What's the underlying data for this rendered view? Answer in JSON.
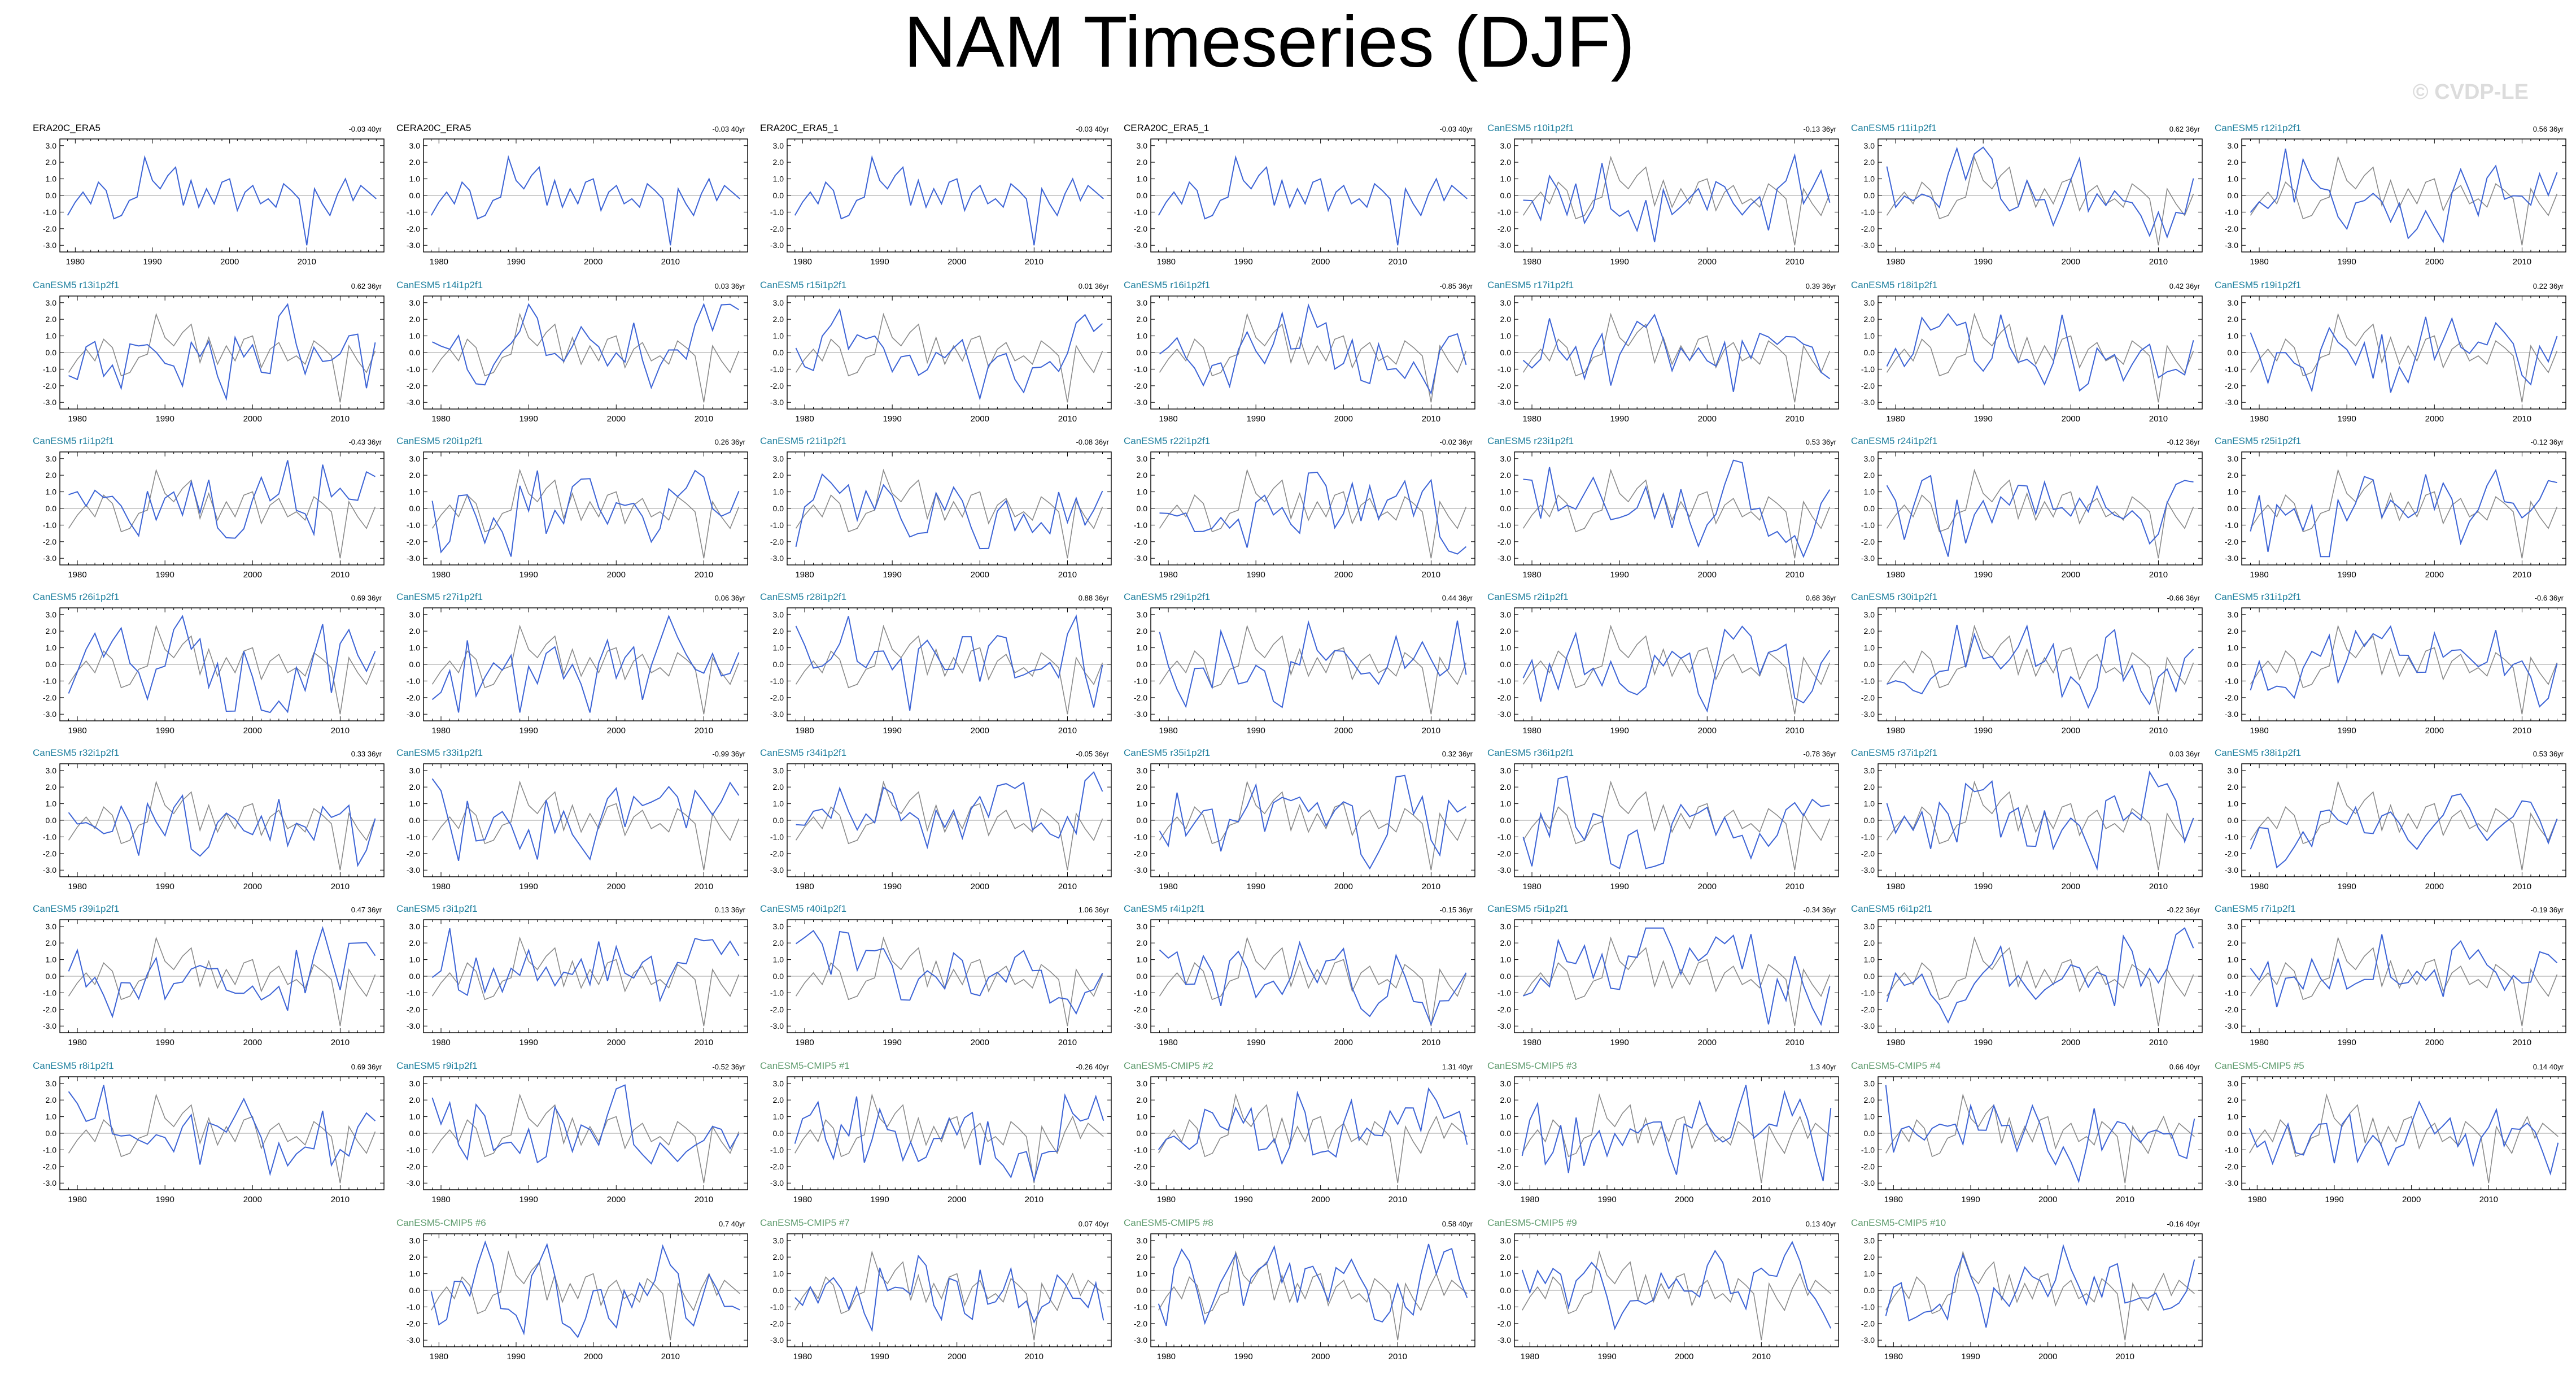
{
  "title": "NAM Timeseries (DJF)",
  "watermark": "© CVDP-LE",
  "colors": {
    "member": "#3d64d6",
    "observation": "#8a8a8a",
    "zero_line": "#9c9c9c"
  },
  "chart_data": {
    "type": "line",
    "start_year": 1979,
    "y_ticks": [
      "3.0",
      "2.0",
      "1.0",
      "0.0",
      "-1.0",
      "-2.0",
      "-3.0"
    ],
    "x_ticks": [
      "1980",
      "1990",
      "2000",
      "2010"
    ],
    "observation": {
      "name": "ERA20C_ERA5",
      "years": [
        1979,
        2019
      ],
      "values": [
        -1.2,
        -0.4,
        0.2,
        -0.5,
        0.8,
        0.3,
        -1.4,
        -1.2,
        -0.3,
        -0.1,
        2.3,
        0.9,
        0.4,
        1.2,
        1.7,
        -0.6,
        0.9,
        -0.7,
        0.4,
        -0.5,
        0.8,
        1.0,
        -0.9,
        0.2,
        0.6,
        -0.5,
        -0.2,
        -0.7,
        0.7,
        0.3,
        -0.2,
        -3.0,
        0.4,
        -0.5,
        -1.2,
        0.1,
        1.0,
        -0.3,
        0.6,
        0.2,
        -0.2
      ]
    },
    "ylim": [
      -3.4,
      3.4
    ],
    "panels": [
      {
        "label": "ERA20C_ERA5",
        "trend": "-0.03 40yr",
        "kind": "obs",
        "years": [
          1979,
          2019
        ],
        "ylim": [
          -3.4,
          3.4
        ],
        "x_ticks": [
          "1980",
          "1990",
          "2000",
          "2010"
        ]
      },
      {
        "label": "CERA20C_ERA5",
        "trend": "-0.03 40yr",
        "kind": "obs",
        "years": [
          1979,
          2019
        ],
        "ylim": [
          -3.4,
          3.4
        ],
        "x_ticks": [
          "1980",
          "1990",
          "2000",
          "2010"
        ]
      },
      {
        "label": "ERA20C_ERA5_1",
        "trend": "-0.03 40yr",
        "kind": "obs",
        "years": [
          1979,
          2019
        ],
        "ylim": [
          -3.4,
          3.4
        ],
        "x_ticks": [
          "1980",
          "1990",
          "2000",
          "2010"
        ]
      },
      {
        "label": "CERA20C_ERA5_1",
        "trend": "-0.03 40yr",
        "kind": "obs",
        "years": [
          1979,
          2019
        ],
        "ylim": [
          -3.4,
          3.4
        ],
        "x_ticks": [
          "1980",
          "1990",
          "2000",
          "2010"
        ]
      },
      {
        "label": "CanESM5 r10i1p2f1",
        "trend": "-0.13 36yr",
        "kind": "lens",
        "years": [
          1979,
          2014
        ],
        "ylim": [
          -3.4,
          3.4
        ],
        "x_ticks": [
          "1980",
          "1990",
          "2000",
          "2010"
        ]
      },
      {
        "label": "CanESM5 r11i1p2f1",
        "trend": "0.62 36yr",
        "kind": "lens",
        "years": [
          1979,
          2014
        ],
        "ylim": [
          -3.4,
          3.4
        ],
        "x_ticks": [
          "1980",
          "1990",
          "2000",
          "2010"
        ]
      },
      {
        "label": "CanESM5 r12i1p2f1",
        "trend": "0.56 36yr",
        "kind": "lens",
        "years": [
          1979,
          2014
        ],
        "ylim": [
          -3.4,
          3.4
        ],
        "x_ticks": [
          "1980",
          "1990",
          "2000",
          "2010"
        ]
      },
      {
        "label": "CanESM5 r13i1p2f1",
        "trend": "0.62 36yr",
        "kind": "lens",
        "years": [
          1979,
          2014
        ],
        "ylim": [
          -3.4,
          3.4
        ],
        "x_ticks": [
          "1980",
          "1990",
          "2000",
          "2010"
        ]
      },
      {
        "label": "CanESM5 r14i1p2f1",
        "trend": "0.03 36yr",
        "kind": "lens",
        "years": [
          1979,
          2014
        ],
        "ylim": [
          -3.4,
          3.4
        ],
        "x_ticks": [
          "1980",
          "1990",
          "2000",
          "2010"
        ]
      },
      {
        "label": "CanESM5 r15i1p2f1",
        "trend": "0.01 36yr",
        "kind": "lens",
        "years": [
          1979,
          2014
        ],
        "ylim": [
          -3.4,
          3.4
        ],
        "x_ticks": [
          "1980",
          "1990",
          "2000",
          "2010"
        ]
      },
      {
        "label": "CanESM5 r16i1p2f1",
        "trend": "-0.85 36yr",
        "kind": "lens",
        "years": [
          1979,
          2014
        ],
        "ylim": [
          -3.4,
          3.4
        ],
        "x_ticks": [
          "1980",
          "1990",
          "2000",
          "2010"
        ]
      },
      {
        "label": "CanESM5 r17i1p2f1",
        "trend": "0.39 36yr",
        "kind": "lens",
        "years": [
          1979,
          2014
        ],
        "ylim": [
          -3.4,
          3.4
        ],
        "x_ticks": [
          "1980",
          "1990",
          "2000",
          "2010"
        ]
      },
      {
        "label": "CanESM5 r18i1p2f1",
        "trend": "0.42 36yr",
        "kind": "lens",
        "years": [
          1979,
          2014
        ],
        "ylim": [
          -3.4,
          3.4
        ],
        "x_ticks": [
          "1980",
          "1990",
          "2000",
          "2010"
        ]
      },
      {
        "label": "CanESM5 r19i1p2f1",
        "trend": "0.22 36yr",
        "kind": "lens",
        "years": [
          1979,
          2014
        ],
        "ylim": [
          -3.4,
          3.4
        ],
        "x_ticks": [
          "1980",
          "1990",
          "2000",
          "2010"
        ]
      },
      {
        "label": "CanESM5 r1i1p2f1",
        "trend": "-0.43 36yr",
        "kind": "lens",
        "years": [
          1979,
          2014
        ],
        "ylim": [
          -3.4,
          3.4
        ],
        "x_ticks": [
          "1980",
          "1990",
          "2000",
          "2010"
        ]
      },
      {
        "label": "CanESM5 r20i1p2f1",
        "trend": "0.26 36yr",
        "kind": "lens",
        "years": [
          1979,
          2014
        ],
        "ylim": [
          -3.4,
          3.4
        ],
        "x_ticks": [
          "1980",
          "1990",
          "2000",
          "2010"
        ]
      },
      {
        "label": "CanESM5 r21i1p2f1",
        "trend": "-0.08 36yr",
        "kind": "lens",
        "years": [
          1979,
          2014
        ],
        "ylim": [
          -3.4,
          3.4
        ],
        "x_ticks": [
          "1980",
          "1990",
          "2000",
          "2010"
        ]
      },
      {
        "label": "CanESM5 r22i1p2f1",
        "trend": "-0.02 36yr",
        "kind": "lens",
        "years": [
          1979,
          2014
        ],
        "ylim": [
          -3.4,
          3.4
        ],
        "x_ticks": [
          "1980",
          "1990",
          "2000",
          "2010"
        ]
      },
      {
        "label": "CanESM5 r23i1p2f1",
        "trend": "0.53 36yr",
        "kind": "lens",
        "years": [
          1979,
          2014
        ],
        "ylim": [
          -3.4,
          3.4
        ],
        "x_ticks": [
          "1980",
          "1990",
          "2000",
          "2010"
        ]
      },
      {
        "label": "CanESM5 r24i1p2f1",
        "trend": "-0.12 36yr",
        "kind": "lens",
        "years": [
          1979,
          2014
        ],
        "ylim": [
          -3.4,
          3.4
        ],
        "x_ticks": [
          "1980",
          "1990",
          "2000",
          "2010"
        ]
      },
      {
        "label": "CanESM5 r25i1p2f1",
        "trend": "-0.12 36yr",
        "kind": "lens",
        "years": [
          1979,
          2014
        ],
        "ylim": [
          -3.4,
          3.4
        ],
        "x_ticks": [
          "1980",
          "1990",
          "2000",
          "2010"
        ]
      },
      {
        "label": "CanESM5 r26i1p2f1",
        "trend": "0.69 36yr",
        "kind": "lens",
        "years": [
          1979,
          2014
        ],
        "ylim": [
          -3.4,
          3.4
        ],
        "x_ticks": [
          "1980",
          "1990",
          "2000",
          "2010"
        ]
      },
      {
        "label": "CanESM5 r27i1p2f1",
        "trend": "0.06 36yr",
        "kind": "lens",
        "years": [
          1979,
          2014
        ],
        "ylim": [
          -3.4,
          3.4
        ],
        "x_ticks": [
          "1980",
          "1990",
          "2000",
          "2010"
        ]
      },
      {
        "label": "CanESM5 r28i1p2f1",
        "trend": "0.88 36yr",
        "kind": "lens",
        "years": [
          1979,
          2014
        ],
        "ylim": [
          -3.4,
          3.4
        ],
        "x_ticks": [
          "1980",
          "1990",
          "2000",
          "2010"
        ]
      },
      {
        "label": "CanESM5 r29i1p2f1",
        "trend": "0.44 36yr",
        "kind": "lens",
        "years": [
          1979,
          2014
        ],
        "ylim": [
          -3.4,
          3.4
        ],
        "x_ticks": [
          "1980",
          "1990",
          "2000",
          "2010"
        ]
      },
      {
        "label": "CanESM5 r2i1p2f1",
        "trend": "0.68 36yr",
        "kind": "lens",
        "years": [
          1979,
          2014
        ],
        "ylim": [
          -3.4,
          3.4
        ],
        "x_ticks": [
          "1980",
          "1990",
          "2000",
          "2010"
        ]
      },
      {
        "label": "CanESM5 r30i1p2f1",
        "trend": "-0.66 36yr",
        "kind": "lens",
        "years": [
          1979,
          2014
        ],
        "ylim": [
          -3.4,
          3.4
        ],
        "x_ticks": [
          "1980",
          "1990",
          "2000",
          "2010"
        ]
      },
      {
        "label": "CanESM5 r31i1p2f1",
        "trend": "-0.6 36yr",
        "kind": "lens",
        "years": [
          1979,
          2014
        ],
        "ylim": [
          -3.4,
          3.4
        ],
        "x_ticks": [
          "1980",
          "1990",
          "2000",
          "2010"
        ]
      },
      {
        "label": "CanESM5 r32i1p2f1",
        "trend": "0.33 36yr",
        "kind": "lens",
        "years": [
          1979,
          2014
        ],
        "ylim": [
          -3.4,
          3.4
        ],
        "x_ticks": [
          "1980",
          "1990",
          "2000",
          "2010"
        ]
      },
      {
        "label": "CanESM5 r33i1p2f1",
        "trend": "-0.99 36yr",
        "kind": "lens",
        "years": [
          1979,
          2014
        ],
        "ylim": [
          -3.4,
          3.4
        ],
        "x_ticks": [
          "1980",
          "1990",
          "2000",
          "2010"
        ]
      },
      {
        "label": "CanESM5 r34i1p2f1",
        "trend": "-0.05 36yr",
        "kind": "lens",
        "years": [
          1979,
          2014
        ],
        "ylim": [
          -3.4,
          3.4
        ],
        "x_ticks": [
          "1980",
          "1990",
          "2000",
          "2010"
        ]
      },
      {
        "label": "CanESM5 r35i1p2f1",
        "trend": "0.32 36yr",
        "kind": "lens",
        "years": [
          1979,
          2014
        ],
        "ylim": [
          -3.4,
          3.4
        ],
        "x_ticks": [
          "1980",
          "1990",
          "2000",
          "2010"
        ]
      },
      {
        "label": "CanESM5 r36i1p2f1",
        "trend": "-0.78 36yr",
        "kind": "lens",
        "years": [
          1979,
          2014
        ],
        "ylim": [
          -3.4,
          3.4
        ],
        "x_ticks": [
          "1980",
          "1990",
          "2000",
          "2010"
        ]
      },
      {
        "label": "CanESM5 r37i1p2f1",
        "trend": "0.03 36yr",
        "kind": "lens",
        "years": [
          1979,
          2014
        ],
        "ylim": [
          -3.4,
          3.4
        ],
        "x_ticks": [
          "1980",
          "1990",
          "2000",
          "2010"
        ]
      },
      {
        "label": "CanESM5 r38i1p2f1",
        "trend": "0.53 36yr",
        "kind": "lens",
        "years": [
          1979,
          2014
        ],
        "ylim": [
          -3.4,
          3.4
        ],
        "x_ticks": [
          "1980",
          "1990",
          "2000",
          "2010"
        ]
      },
      {
        "label": "CanESM5 r39i1p2f1",
        "trend": "0.47 36yr",
        "kind": "lens",
        "years": [
          1979,
          2014
        ],
        "ylim": [
          -3.4,
          3.4
        ],
        "x_ticks": [
          "1980",
          "1990",
          "2000",
          "2010"
        ]
      },
      {
        "label": "CanESM5 r3i1p2f1",
        "trend": "0.13 36yr",
        "kind": "lens",
        "years": [
          1979,
          2014
        ],
        "ylim": [
          -3.4,
          3.4
        ],
        "x_ticks": [
          "1980",
          "1990",
          "2000",
          "2010"
        ]
      },
      {
        "label": "CanESM5 r40i1p2f1",
        "trend": "1.06 36yr",
        "kind": "lens",
        "years": [
          1979,
          2014
        ],
        "ylim": [
          -3.4,
          3.4
        ],
        "x_ticks": [
          "1980",
          "1990",
          "2000",
          "2010"
        ]
      },
      {
        "label": "CanESM5 r4i1p2f1",
        "trend": "-0.15 36yr",
        "kind": "lens",
        "years": [
          1979,
          2014
        ],
        "ylim": [
          -3.4,
          3.4
        ],
        "x_ticks": [
          "1980",
          "1990",
          "2000",
          "2010"
        ]
      },
      {
        "label": "CanESM5 r5i1p2f1",
        "trend": "-0.34 36yr",
        "kind": "lens",
        "years": [
          1979,
          2014
        ],
        "ylim": [
          -3.4,
          3.4
        ],
        "x_ticks": [
          "1980",
          "1990",
          "2000",
          "2010"
        ]
      },
      {
        "label": "CanESM5 r6i1p2f1",
        "trend": "-0.22 36yr",
        "kind": "lens",
        "years": [
          1979,
          2014
        ],
        "ylim": [
          -3.4,
          3.4
        ],
        "x_ticks": [
          "1980",
          "1990",
          "2000",
          "2010"
        ]
      },
      {
        "label": "CanESM5 r7i1p2f1",
        "trend": "-0.19 36yr",
        "kind": "lens",
        "years": [
          1979,
          2014
        ],
        "ylim": [
          -3.4,
          3.4
        ],
        "x_ticks": [
          "1980",
          "1990",
          "2000",
          "2010"
        ]
      },
      {
        "label": "CanESM5 r8i1p2f1",
        "trend": "0.69 36yr",
        "kind": "lens",
        "years": [
          1979,
          2014
        ],
        "ylim": [
          -3.4,
          3.4
        ],
        "x_ticks": [
          "1980",
          "1990",
          "2000",
          "2010"
        ]
      },
      {
        "label": "CanESM5 r9i1p2f1",
        "trend": "-0.52 36yr",
        "kind": "lens",
        "years": [
          1979,
          2014
        ],
        "ylim": [
          -3.4,
          3.4
        ],
        "x_ticks": [
          "1980",
          "1990",
          "2000",
          "2010"
        ]
      },
      {
        "label": "CanESM5-CMIP5 #1",
        "trend": "-0.26 40yr",
        "kind": "cmip",
        "years": [
          1979,
          2019
        ],
        "ylim": [
          -3.4,
          3.4
        ],
        "x_ticks": [
          "1980",
          "1990",
          "2000",
          "2010"
        ]
      },
      {
        "label": "CanESM5-CMIP5 #2",
        "trend": "1.31 40yr",
        "kind": "cmip",
        "years": [
          1979,
          2019
        ],
        "ylim": [
          -3.4,
          3.4
        ],
        "x_ticks": [
          "1980",
          "1990",
          "2000",
          "2010"
        ]
      },
      {
        "label": "CanESM5-CMIP5 #3",
        "trend": "1.3 40yr",
        "kind": "cmip",
        "years": [
          1979,
          2019
        ],
        "ylim": [
          -3.4,
          3.4
        ],
        "x_ticks": [
          "1980",
          "1990",
          "2000",
          "2010"
        ]
      },
      {
        "label": "CanESM5-CMIP5 #4",
        "trend": "0.66 40yr",
        "kind": "cmip",
        "years": [
          1979,
          2019
        ],
        "ylim": [
          -3.4,
          3.4
        ],
        "x_ticks": [
          "1980",
          "1990",
          "2000",
          "2010"
        ]
      },
      {
        "label": "CanESM5-CMIP5 #5",
        "trend": "0.14 40yr",
        "kind": "cmip",
        "years": [
          1979,
          2019
        ],
        "ylim": [
          -3.4,
          3.4
        ],
        "x_ticks": [
          "1980",
          "1990",
          "2000",
          "2010"
        ]
      },
      {
        "label": "CanESM5-CMIP5 #6",
        "trend": "0.7 40yr",
        "kind": "cmip",
        "years": [
          1979,
          2019
        ],
        "ylim": [
          -3.4,
          3.4
        ],
        "x_ticks": [
          "1980",
          "1990",
          "2000",
          "2010"
        ]
      },
      {
        "label": "CanESM5-CMIP5 #7",
        "trend": "0.07 40yr",
        "kind": "cmip",
        "years": [
          1979,
          2019
        ],
        "ylim": [
          -3.4,
          3.4
        ],
        "x_ticks": [
          "1980",
          "1990",
          "2000",
          "2010"
        ]
      },
      {
        "label": "CanESM5-CMIP5 #8",
        "trend": "0.58 40yr",
        "kind": "cmip",
        "years": [
          1979,
          2019
        ],
        "ylim": [
          -3.4,
          3.4
        ],
        "x_ticks": [
          "1980",
          "1990",
          "2000",
          "2010"
        ]
      },
      {
        "label": "CanESM5-CMIP5 #9",
        "trend": "0.13 40yr",
        "kind": "cmip",
        "years": [
          1979,
          2019
        ],
        "ylim": [
          -3.4,
          3.4
        ],
        "x_ticks": [
          "1980",
          "1990",
          "2000",
          "2010"
        ]
      },
      {
        "label": "CanESM5-CMIP5 #10",
        "trend": "-0.16 40yr",
        "kind": "cmip",
        "years": [
          1979,
          2019
        ],
        "ylim": [
          -3.4,
          3.4
        ],
        "x_ticks": [
          "1980",
          "1990",
          "2000",
          "2010"
        ]
      }
    ]
  }
}
